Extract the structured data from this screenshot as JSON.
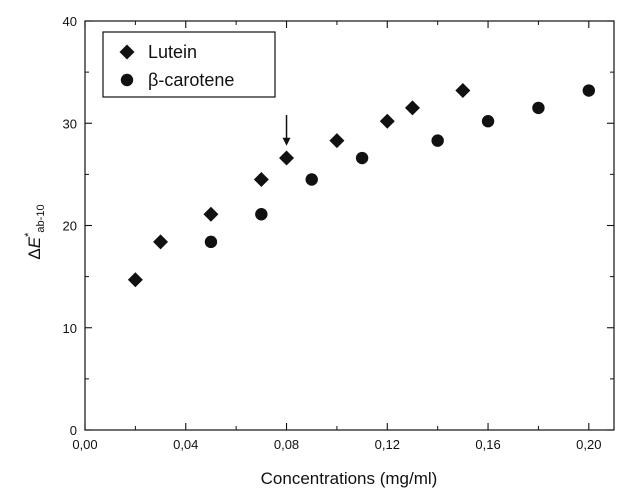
{
  "chart_data": {
    "type": "scatter",
    "title": "",
    "xlabel": "Concentrations (mg/ml)",
    "ylabel": "ΔE*ab-10",
    "ylabel_parts": {
      "delta": "Δ",
      "symbol": "E",
      "star": "*",
      "subscript": "ab-10"
    },
    "xlim": [
      0,
      0.21
    ],
    "ylim": [
      0,
      40
    ],
    "xticks": [
      0,
      0.04,
      0.08,
      0.12,
      0.16,
      0.2
    ],
    "xtick_labels": [
      "0,00",
      "0,04",
      "0,08",
      "0,12",
      "0,16",
      "0,20"
    ],
    "yticks": [
      0,
      10,
      20,
      30,
      40
    ],
    "ytick_labels": [
      "0",
      "10",
      "20",
      "30",
      "40"
    ],
    "grid": false,
    "legend_position": "top-left",
    "series": [
      {
        "name": "Lutein",
        "marker": "diamond",
        "color": "#111111",
        "x": [
          0.02,
          0.03,
          0.05,
          0.07,
          0.08,
          0.1,
          0.12,
          0.13,
          0.15
        ],
        "y": [
          14.7,
          18.4,
          21.1,
          24.5,
          26.6,
          28.3,
          30.2,
          31.5,
          33.2
        ]
      },
      {
        "name": "β-carotene",
        "marker": "circle",
        "color": "#111111",
        "x": [
          0.05,
          0.07,
          0.09,
          0.11,
          0.14,
          0.16,
          0.18,
          0.2
        ],
        "y": [
          18.4,
          21.1,
          24.5,
          26.6,
          28.3,
          30.2,
          31.5,
          33.2
        ]
      }
    ],
    "annotations": [
      {
        "type": "arrow",
        "x": 0.08,
        "y_from": 30.8,
        "y_to": 27.8
      }
    ]
  }
}
